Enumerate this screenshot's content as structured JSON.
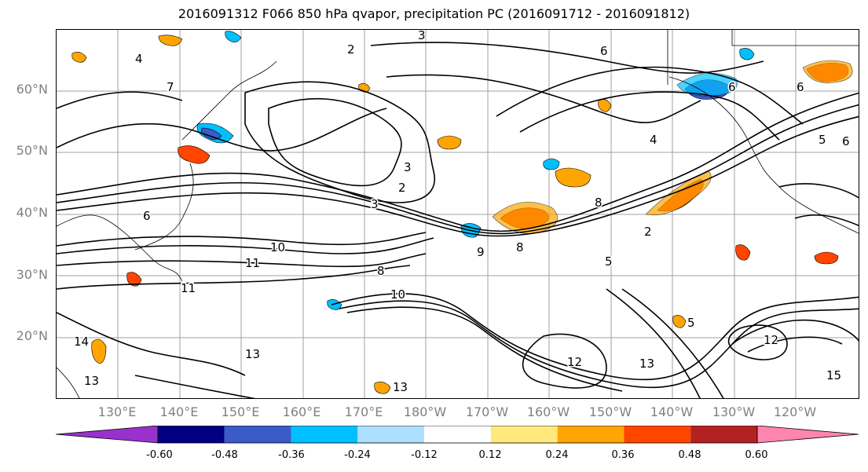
{
  "title": "2016091312 F066 850 hPa qvapor, precipitation PC (2016091712 - 2016091812)",
  "lat_labels": [
    "60°N",
    "50°N",
    "40°N",
    "30°N",
    "20°N"
  ],
  "lon_labels": [
    "130°E",
    "140°E",
    "150°E",
    "160°E",
    "170°E",
    "180°W",
    "170°W",
    "160°W",
    "150°W",
    "140°W",
    "130°W",
    "120°W"
  ],
  "colorbar": {
    "colors": [
      "#9932CC",
      "#000080",
      "#3A5BC8",
      "#00BFFF",
      "#ADDFFF",
      "#FFFFFF",
      "#FFE97F",
      "#FFA500",
      "#FF4500",
      "#B22222",
      "#FF85B0"
    ],
    "tick_labels": [
      "-0.60",
      "-0.48",
      "-0.36",
      "-0.24",
      "-0.12",
      "0.12",
      "0.24",
      "0.36",
      "0.48",
      "0.60"
    ]
  },
  "contour_labels": [
    {
      "text": "3"
    },
    {
      "text": "4"
    },
    {
      "text": "2"
    },
    {
      "text": "7"
    },
    {
      "text": "6"
    },
    {
      "text": "3"
    },
    {
      "text": "2"
    },
    {
      "text": "6"
    },
    {
      "text": "3"
    },
    {
      "text": "10"
    },
    {
      "text": "11"
    },
    {
      "text": "11"
    },
    {
      "text": "9"
    },
    {
      "text": "8"
    },
    {
      "text": "10"
    },
    {
      "text": "8"
    },
    {
      "text": "14"
    },
    {
      "text": "13"
    },
    {
      "text": "13"
    },
    {
      "text": "13"
    },
    {
      "text": "12"
    },
    {
      "text": "13"
    },
    {
      "text": "15"
    },
    {
      "text": "12"
    },
    {
      "text": "8"
    },
    {
      "text": "6"
    },
    {
      "text": "5"
    },
    {
      "text": "6"
    },
    {
      "text": "5"
    },
    {
      "text": "6"
    },
    {
      "text": "4"
    },
    {
      "text": "2"
    },
    {
      "text": "5"
    }
  ]
}
